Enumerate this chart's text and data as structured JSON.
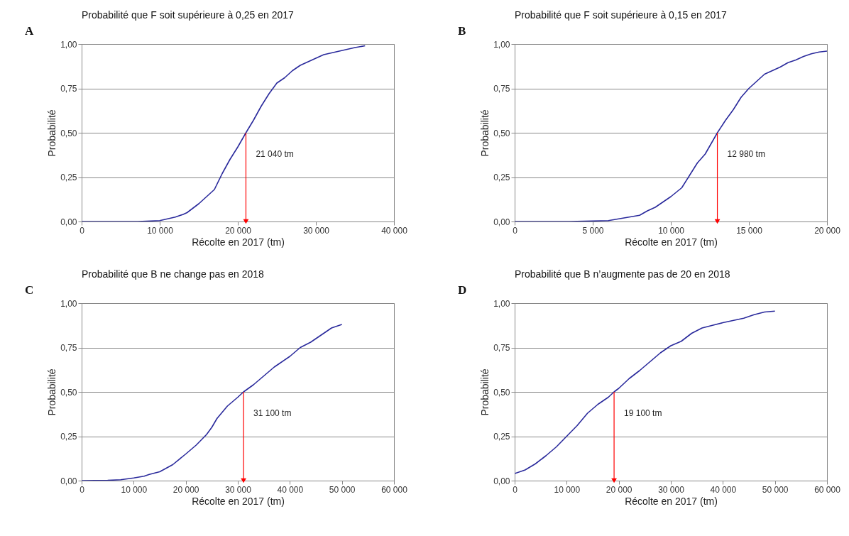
{
  "chart_data": [
    {
      "type": "line",
      "title": "Probabilité que F soit supérieure à 0,25 en 2017",
      "xlabel": "Récolte en 2017 (tm)",
      "ylabel": "Probabilité",
      "grid": "y",
      "xlim": [
        0,
        40000
      ],
      "ylim": [
        0,
        1
      ],
      "xticks": [
        {
          "value": 0,
          "label": "0"
        },
        {
          "value": 10000,
          "label": "10 000"
        },
        {
          "value": 20000,
          "label": "20 000"
        },
        {
          "value": 30000,
          "label": "30 000"
        },
        {
          "value": 40000,
          "label": "40 000"
        }
      ],
      "yticks": [
        {
          "value": 0,
          "label": "0,00"
        },
        {
          "value": 0.25,
          "label": "0,25"
        },
        {
          "value": 0.5,
          "label": "0,50"
        },
        {
          "value": 0.75,
          "label": "0,75"
        },
        {
          "value": 1,
          "label": "1,00"
        }
      ],
      "annotations": [
        "A",
        {
          "text": "21 040 tm",
          "x": 21040,
          "y": 0.5
        }
      ],
      "series": [
        {
          "color": "#2a2a9c",
          "x": [
            0,
            7200,
            10000,
            12000,
            13000,
            13500,
            15000,
            16000,
            17000,
            18000,
            19000,
            20000,
            21040,
            22000,
            23000,
            24000,
            25000,
            26000,
            27000,
            28000,
            29000,
            30000,
            31000,
            33000,
            35000,
            36300
          ],
          "values": [
            0,
            0,
            0.005,
            0.025,
            0.04,
            0.05,
            0.1,
            0.14,
            0.18,
            0.27,
            0.35,
            0.42,
            0.5,
            0.57,
            0.65,
            0.72,
            0.78,
            0.81,
            0.85,
            0.88,
            0.9,
            0.92,
            0.94,
            0.96,
            0.98,
            0.99
          ]
        }
      ]
    },
    {
      "type": "line",
      "title": "Probabilité que F soit supérieure à 0,15 en 2017",
      "xlabel": "Récolte en 2017 (tm)",
      "ylabel": "Probabilité",
      "grid": "y",
      "xlim": [
        0,
        20000
      ],
      "ylim": [
        0,
        1
      ],
      "xticks": [
        {
          "value": 0,
          "label": "0"
        },
        {
          "value": 5000,
          "label": "5 000"
        },
        {
          "value": 10000,
          "label": "10 000"
        },
        {
          "value": 15000,
          "label": "15 000"
        },
        {
          "value": 20000,
          "label": "20 000"
        }
      ],
      "yticks": [
        {
          "value": 0,
          "label": "0,00"
        },
        {
          "value": 0.25,
          "label": "0,25"
        },
        {
          "value": 0.5,
          "label": "0,50"
        },
        {
          "value": 0.75,
          "label": "0,75"
        },
        {
          "value": 1,
          "label": "1,00"
        }
      ],
      "annotations": [
        "B",
        {
          "text": "12 980 tm",
          "x": 12980,
          "y": 0.5
        }
      ],
      "series": [
        {
          "color": "#2a2a9c",
          "x": [
            0,
            3500,
            5000,
            6000,
            7000,
            8000,
            8500,
            9000,
            10000,
            10700,
            11200,
            11700,
            12200,
            12980,
            13500,
            14000,
            14500,
            15000,
            15500,
            16000,
            16500,
            17000,
            17500,
            18000,
            18500,
            19000,
            19500,
            20000
          ],
          "values": [
            0,
            0,
            0.003,
            0.005,
            0.02,
            0.035,
            0.06,
            0.08,
            0.14,
            0.19,
            0.26,
            0.33,
            0.38,
            0.5,
            0.57,
            0.63,
            0.7,
            0.75,
            0.79,
            0.83,
            0.85,
            0.87,
            0.895,
            0.91,
            0.93,
            0.945,
            0.955,
            0.96
          ]
        }
      ]
    },
    {
      "type": "line",
      "title": "Probabilité que B ne change pas en 2018",
      "xlabel": "Récolte en 2017 (tm)",
      "ylabel": "Probabilité",
      "grid": "y",
      "xlim": [
        0,
        60000
      ],
      "ylim": [
        0,
        1
      ],
      "xticks": [
        {
          "value": 0,
          "label": "0"
        },
        {
          "value": 10000,
          "label": "10 000"
        },
        {
          "value": 20000,
          "label": "20 000"
        },
        {
          "value": 30000,
          "label": "30 000"
        },
        {
          "value": 40000,
          "label": "40 000"
        },
        {
          "value": 50000,
          "label": "50 000"
        },
        {
          "value": 60000,
          "label": "60 000"
        }
      ],
      "yticks": [
        {
          "value": 0,
          "label": "0,00"
        },
        {
          "value": 0.25,
          "label": "0,25"
        },
        {
          "value": 0.5,
          "label": "0,50"
        },
        {
          "value": 0.75,
          "label": "0,75"
        },
        {
          "value": 1,
          "label": "1,00"
        }
      ],
      "annotations": [
        "C",
        {
          "text": "31 100 tm",
          "x": 31100,
          "y": 0.5
        }
      ],
      "series": [
        {
          "color": "#2a2a9c",
          "x": [
            0,
            5000,
            7500,
            10000,
            12000,
            13000,
            15000,
            17500,
            20000,
            22000,
            24000,
            25000,
            26000,
            28000,
            30000,
            31100,
            33000,
            35000,
            37000,
            38000,
            40000,
            42000,
            44000,
            46000,
            48000,
            50000
          ],
          "values": [
            0,
            0.002,
            0.005,
            0.015,
            0.025,
            0.035,
            0.05,
            0.09,
            0.15,
            0.2,
            0.26,
            0.3,
            0.35,
            0.42,
            0.47,
            0.5,
            0.54,
            0.59,
            0.64,
            0.66,
            0.7,
            0.75,
            0.78,
            0.82,
            0.86,
            0.88
          ]
        }
      ]
    },
    {
      "type": "line",
      "title": "Probabilité que B n’augmente pas de 20  en 2018",
      "xlabel": "Récolte en 2017 (tm)",
      "ylabel": "Probabilité",
      "grid": "y",
      "xlim": [
        0,
        60000
      ],
      "ylim": [
        0,
        1
      ],
      "xticks": [
        {
          "value": 0,
          "label": "0"
        },
        {
          "value": 10000,
          "label": "10 000"
        },
        {
          "value": 20000,
          "label": "20 000"
        },
        {
          "value": 30000,
          "label": "30 000"
        },
        {
          "value": 40000,
          "label": "40 000"
        },
        {
          "value": 50000,
          "label": "50 000"
        },
        {
          "value": 60000,
          "label": "60 000"
        }
      ],
      "yticks": [
        {
          "value": 0,
          "label": "0,00"
        },
        {
          "value": 0.25,
          "label": "0,25"
        },
        {
          "value": 0.5,
          "label": "0,50"
        },
        {
          "value": 0.75,
          "label": "0,75"
        },
        {
          "value": 1,
          "label": "1,00"
        }
      ],
      "annotations": [
        "D",
        {
          "text": "19 100 tm",
          "x": 19100,
          "y": 0.5
        }
      ],
      "series": [
        {
          "color": "#2a2a9c",
          "x": [
            0,
            2000,
            4000,
            6000,
            8000,
            10000,
            12000,
            14000,
            16000,
            18000,
            19100,
            20000,
            22000,
            24000,
            26000,
            28000,
            30000,
            32000,
            34000,
            36000,
            38000,
            40000,
            44000,
            46000,
            48000,
            50000
          ],
          "values": [
            0.04,
            0.06,
            0.095,
            0.14,
            0.19,
            0.25,
            0.31,
            0.38,
            0.43,
            0.47,
            0.5,
            0.52,
            0.575,
            0.62,
            0.67,
            0.72,
            0.76,
            0.785,
            0.83,
            0.86,
            0.875,
            0.89,
            0.915,
            0.935,
            0.95,
            0.955
          ]
        }
      ]
    }
  ]
}
